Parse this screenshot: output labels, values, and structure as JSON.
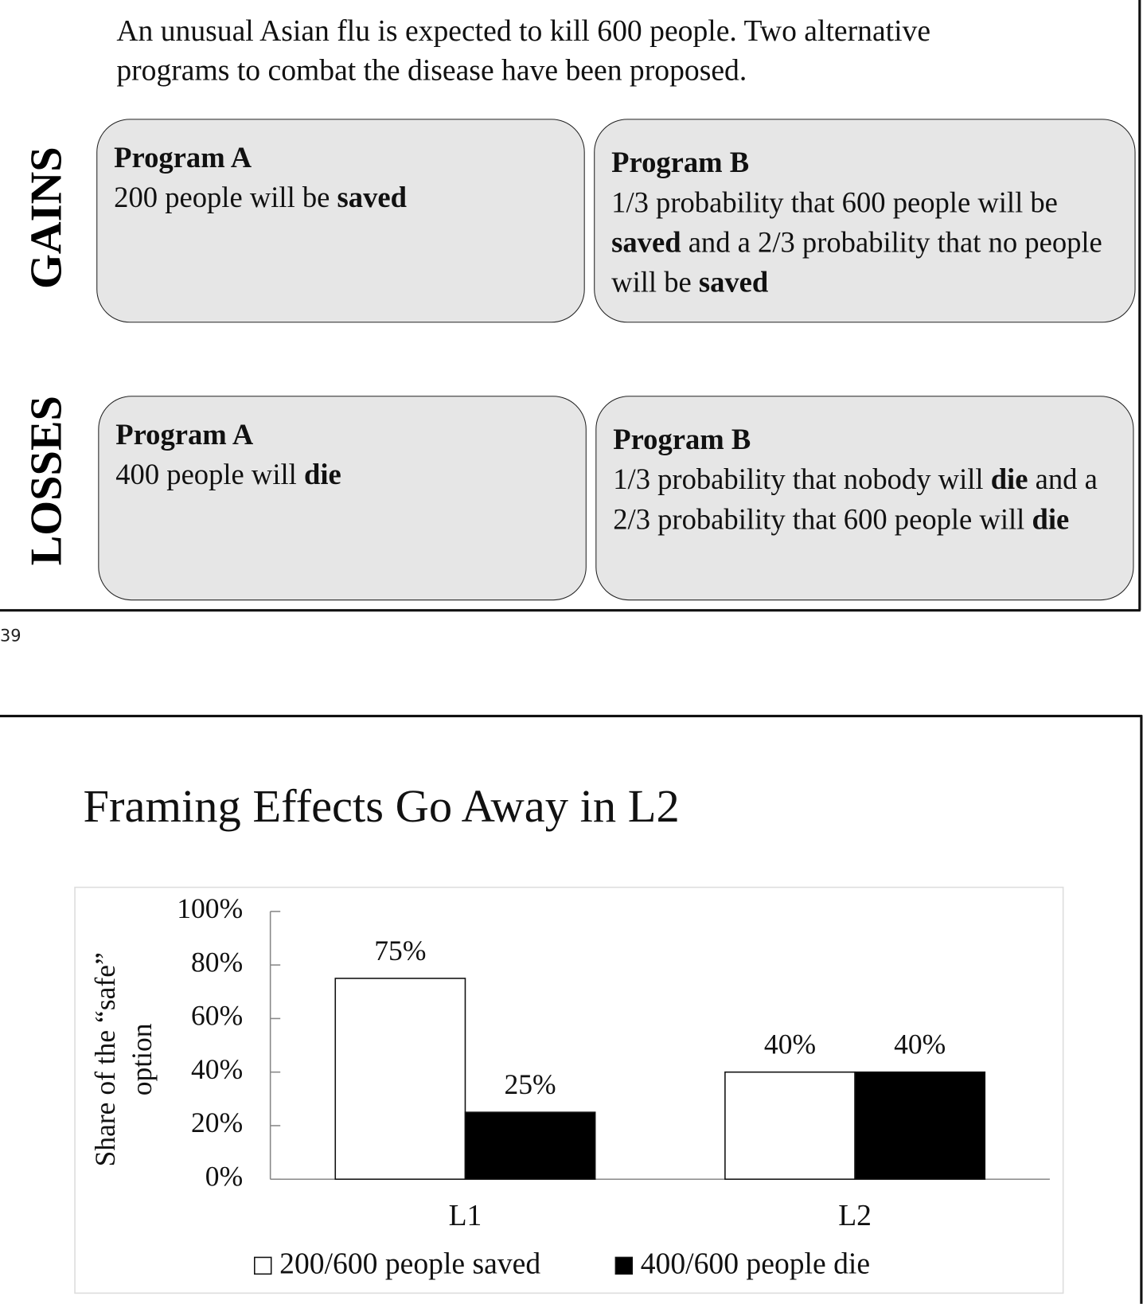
{
  "slide1": {
    "intro": "An unusual Asian flu is expected to kill 600 people. Two alternative programs to combat the disease have been proposed.",
    "rows": [
      {
        "label": "GAINS",
        "programs": [
          {
            "title": "Program A",
            "runs": [
              {
                "text": "200 people will be "
              },
              {
                "text": "saved",
                "bold": true
              }
            ]
          },
          {
            "title": "Program B",
            "runs": [
              {
                "text": "1/3 probability that 600 people will be "
              },
              {
                "text": "saved",
                "bold": true
              },
              {
                "text": " and a 2/3 probability that no people will be "
              },
              {
                "text": "saved",
                "bold": true
              }
            ]
          }
        ]
      },
      {
        "label": "LOSSES",
        "programs": [
          {
            "title": "Program A",
            "runs": [
              {
                "text": "400 people will "
              },
              {
                "text": "die",
                "bold": true
              }
            ]
          },
          {
            "title": "Program B",
            "runs": [
              {
                "text": "1/3 probability that nobody will "
              },
              {
                "text": "die",
                "bold": true
              },
              {
                "text": " and a 2/3 probability that 600 people will "
              },
              {
                "text": "die",
                "bold": true
              }
            ]
          }
        ]
      }
    ],
    "page_number": "39"
  },
  "chart_data": {
    "type": "bar",
    "title": "Framing Effects Go Away in L2",
    "ylabel": "Share of the “safe” option",
    "categories": [
      "L1",
      "L2"
    ],
    "series": [
      {
        "name": "200/600 people saved",
        "color": "#ffffff",
        "values": [
          75,
          40
        ],
        "value_labels": [
          "75%",
          "40%"
        ]
      },
      {
        "name": "400/600 people die",
        "color": "#000000",
        "values": [
          25,
          40
        ],
        "value_labels": [
          "25%",
          "40%"
        ]
      }
    ],
    "ylim": [
      0,
      100
    ],
    "yticks": [
      {
        "value": 0,
        "label": "0%"
      },
      {
        "value": 20,
        "label": "20%"
      },
      {
        "value": 40,
        "label": "40%"
      },
      {
        "value": 60,
        "label": "60%"
      },
      {
        "value": 80,
        "label": "80%"
      },
      {
        "value": 100,
        "label": "100%"
      }
    ],
    "grid": false
  }
}
